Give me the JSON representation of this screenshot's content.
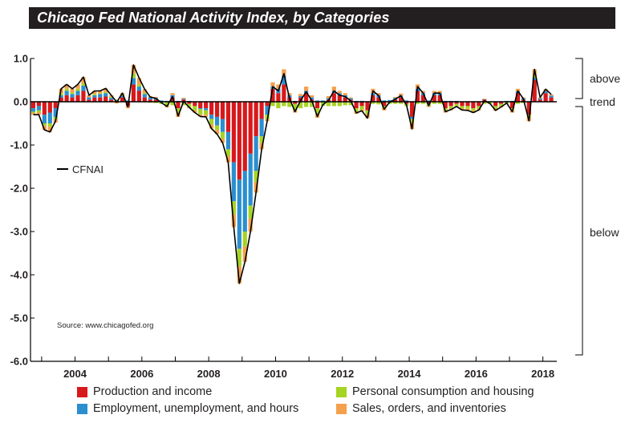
{
  "header": {
    "title": "Chicago Fed National Activity Index, by Categories"
  },
  "colors": {
    "production": "#d7191c",
    "employment": "#2b8fcf",
    "consumption": "#a6d423",
    "sales": "#f4a04c",
    "line": "#000000",
    "title_bg": "#231f20"
  },
  "chart_data": {
    "type": "bar",
    "subtype": "stacked-bar-with-line",
    "title": "Chicago Fed National Activity Index, by Categories",
    "xlabel": "",
    "ylabel": "",
    "xlim": [
      "2002-09",
      "2018-06"
    ],
    "ylim": [
      -6.0,
      1.0
    ],
    "yticks": [
      {
        "value": 1.0,
        "label": "1.0"
      },
      {
        "value": 0.0,
        "label": "0.0"
      },
      {
        "value": -1.0,
        "label": "-1.0"
      },
      {
        "value": -2.0,
        "label": "-2.0"
      },
      {
        "value": -3.0,
        "label": "-3.0"
      },
      {
        "value": -4.0,
        "label": "-4.0"
      },
      {
        "value": -5.0,
        "label": "-5.0"
      },
      {
        "value": -6.0,
        "label": "-6.0"
      }
    ],
    "xticks": [
      {
        "value": 2004,
        "label": "2004"
      },
      {
        "value": 2006,
        "label": "2006"
      },
      {
        "value": 2008,
        "label": "2008"
      },
      {
        "value": 2010,
        "label": "2010"
      },
      {
        "value": 2012,
        "label": "2012"
      },
      {
        "value": 2014,
        "label": "2014"
      },
      {
        "value": 2016,
        "label": "2016"
      },
      {
        "value": 2018,
        "label": "2018"
      }
    ],
    "line_legend": "CFNAI",
    "regions": [
      {
        "label": "above",
        "from": 1.0,
        "to": 0.1
      },
      {
        "label": "trend",
        "from": 0.1,
        "to": -0.1
      },
      {
        "label": "below",
        "from": -0.1,
        "to": -6.0
      }
    ],
    "annotation": "Source: www.chicagofed.org",
    "series": [
      {
        "name": "Production and income",
        "key": "production"
      },
      {
        "name": "Employment, unemployment, and hours",
        "key": "employment"
      },
      {
        "name": "Personal consumption and housing",
        "key": "consumption"
      },
      {
        "name": "Sales, orders, and inventories",
        "key": "sales"
      }
    ],
    "points": [
      [
        "2002-10",
        -0.15,
        -0.08,
        -0.03,
        -0.04
      ],
      [
        "2002-12",
        -0.1,
        -0.1,
        -0.04,
        -0.06
      ],
      [
        "2003-02",
        -0.3,
        -0.2,
        -0.05,
        -0.1
      ],
      [
        "2003-04",
        -0.25,
        -0.25,
        -0.08,
        -0.12
      ],
      [
        "2003-06",
        -0.15,
        -0.2,
        -0.05,
        -0.08
      ],
      [
        "2003-08",
        0.1,
        0.05,
        0.05,
        0.1
      ],
      [
        "2003-10",
        0.15,
        0.1,
        0.05,
        0.1
      ],
      [
        "2003-12",
        0.1,
        0.08,
        0.04,
        0.08
      ],
      [
        "2004-02",
        0.15,
        0.1,
        0.05,
        0.1
      ],
      [
        "2004-04",
        0.25,
        0.12,
        0.05,
        0.15
      ],
      [
        "2004-06",
        0.05,
        0.05,
        0.0,
        0.05
      ],
      [
        "2004-08",
        0.1,
        0.05,
        0.03,
        0.07
      ],
      [
        "2004-10",
        0.1,
        0.08,
        0.02,
        0.05
      ],
      [
        "2004-12",
        0.12,
        0.08,
        0.03,
        0.08
      ],
      [
        "2005-02",
        0.05,
        0.04,
        0.02,
        0.04
      ],
      [
        "2005-04",
        0.0,
        0.03,
        0.02,
        -0.04
      ],
      [
        "2005-06",
        0.1,
        0.04,
        0.02,
        0.04
      ],
      [
        "2005-08",
        -0.1,
        0.03,
        0.0,
        -0.05
      ],
      [
        "2005-10",
        0.4,
        0.15,
        0.1,
        0.2
      ],
      [
        "2005-12",
        0.25,
        0.1,
        0.05,
        0.15
      ],
      [
        "2006-02",
        0.1,
        0.08,
        0.03,
        0.08
      ],
      [
        "2006-04",
        0.05,
        0.05,
        -0.02,
        0.03
      ],
      [
        "2006-06",
        0.05,
        0.04,
        -0.03,
        0.02
      ],
      [
        "2006-08",
        0.0,
        0.03,
        -0.05,
        0.0
      ],
      [
        "2006-10",
        0.0,
        0.02,
        -0.08,
        -0.05
      ],
      [
        "2006-12",
        0.1,
        0.05,
        -0.08,
        0.05
      ],
      [
        "2007-02",
        -0.15,
        0.02,
        -0.1,
        -0.1
      ],
      [
        "2007-04",
        0.05,
        0.02,
        -0.08,
        0.02
      ],
      [
        "2007-06",
        -0.05,
        0.02,
        -0.08,
        -0.02
      ],
      [
        "2007-08",
        -0.1,
        0.0,
        -0.1,
        -0.05
      ],
      [
        "2007-10",
        -0.15,
        -0.02,
        -0.12,
        -0.05
      ],
      [
        "2007-12",
        -0.15,
        -0.05,
        -0.1,
        -0.05
      ],
      [
        "2008-02",
        -0.3,
        -0.1,
        -0.12,
        -0.1
      ],
      [
        "2008-04",
        -0.35,
        -0.2,
        -0.1,
        -0.1
      ],
      [
        "2008-06",
        -0.4,
        -0.3,
        -0.15,
        -0.1
      ],
      [
        "2008-08",
        -0.7,
        -0.4,
        -0.15,
        -0.15
      ],
      [
        "2008-10",
        -1.4,
        -0.9,
        -0.3,
        -0.3
      ],
      [
        "2008-12",
        -1.8,
        -1.6,
        -0.4,
        -0.4
      ],
      [
        "2009-02",
        -1.6,
        -1.4,
        -0.35,
        -0.35
      ],
      [
        "2009-04",
        -1.2,
        -1.2,
        -0.3,
        -0.3
      ],
      [
        "2009-06",
        -0.8,
        -0.8,
        -0.25,
        -0.25
      ],
      [
        "2009-08",
        -0.4,
        -0.4,
        -0.15,
        -0.15
      ],
      [
        "2009-10",
        -0.1,
        -0.2,
        -0.1,
        -0.05
      ],
      [
        "2009-12",
        0.3,
        0.05,
        -0.1,
        0.1
      ],
      [
        "2010-02",
        0.2,
        0.1,
        -0.15,
        0.1
      ],
      [
        "2010-04",
        0.4,
        0.2,
        -0.1,
        0.15
      ],
      [
        "2010-06",
        0.1,
        0.05,
        -0.12,
        0.05
      ],
      [
        "2010-08",
        -0.05,
        0.02,
        -0.15,
        -0.05
      ],
      [
        "2010-10",
        0.1,
        0.03,
        -0.15,
        0.05
      ],
      [
        "2010-12",
        0.2,
        0.05,
        -0.12,
        0.1
      ],
      [
        "2011-02",
        0.05,
        0.05,
        -0.12,
        0.05
      ],
      [
        "2011-04",
        -0.15,
        0.03,
        -0.12,
        -0.1
      ],
      [
        "2011-06",
        0.0,
        0.03,
        -0.1,
        0.0
      ],
      [
        "2011-08",
        0.05,
        0.03,
        -0.1,
        0.05
      ],
      [
        "2011-10",
        0.2,
        0.05,
        -0.1,
        0.1
      ],
      [
        "2011-12",
        0.15,
        0.05,
        -0.1,
        0.05
      ],
      [
        "2012-02",
        0.1,
        0.05,
        -0.08,
        0.05
      ],
      [
        "2012-04",
        0.05,
        0.03,
        -0.08,
        0.02
      ],
      [
        "2012-06",
        -0.15,
        0.02,
        -0.08,
        -0.05
      ],
      [
        "2012-08",
        -0.1,
        0.02,
        -0.08,
        -0.05
      ],
      [
        "2012-10",
        -0.2,
        0.0,
        -0.08,
        -0.1
      ],
      [
        "2012-12",
        0.15,
        0.05,
        -0.05,
        0.1
      ],
      [
        "2013-02",
        0.1,
        0.05,
        -0.06,
        0.05
      ],
      [
        "2013-04",
        -0.1,
        0.03,
        -0.05,
        -0.05
      ],
      [
        "2013-06",
        0.0,
        0.04,
        -0.05,
        0.0
      ],
      [
        "2013-08",
        0.05,
        0.04,
        -0.05,
        0.02
      ],
      [
        "2013-10",
        0.1,
        0.04,
        -0.05,
        0.05
      ],
      [
        "2013-12",
        -0.05,
        0.03,
        -0.05,
        0.0
      ],
      [
        "2014-02",
        -0.35,
        -0.05,
        -0.08,
        -0.15
      ],
      [
        "2014-04",
        0.25,
        0.05,
        -0.05,
        0.1
      ],
      [
        "2014-06",
        0.15,
        0.05,
        -0.05,
        0.05
      ],
      [
        "2014-08",
        -0.05,
        0.03,
        -0.05,
        -0.02
      ],
      [
        "2014-10",
        0.15,
        0.05,
        -0.05,
        0.05
      ],
      [
        "2014-12",
        0.15,
        0.05,
        -0.05,
        0.05
      ],
      [
        "2015-02",
        -0.15,
        0.02,
        -0.05,
        -0.05
      ],
      [
        "2015-04",
        -0.1,
        0.02,
        -0.05,
        -0.05
      ],
      [
        "2015-06",
        -0.05,
        0.02,
        -0.05,
        -0.03
      ],
      [
        "2015-08",
        -0.1,
        0.01,
        -0.05,
        -0.05
      ],
      [
        "2015-10",
        -0.1,
        0.01,
        -0.06,
        -0.05
      ],
      [
        "2015-12",
        -0.15,
        0.01,
        -0.06,
        -0.05
      ],
      [
        "2016-02",
        -0.1,
        0.01,
        -0.05,
        -0.05
      ],
      [
        "2016-04",
        0.05,
        0.01,
        -0.05,
        0.01
      ],
      [
        "2016-06",
        0.0,
        0.01,
        -0.05,
        0.0
      ],
      [
        "2016-08",
        -0.1,
        0.01,
        -0.06,
        -0.05
      ],
      [
        "2016-10",
        -0.05,
        0.01,
        -0.05,
        -0.03
      ],
      [
        "2016-12",
        0.0,
        0.02,
        -0.05,
        0.0
      ],
      [
        "2017-02",
        -0.15,
        0.02,
        -0.05,
        -0.05
      ],
      [
        "2017-04",
        0.2,
        0.04,
        -0.05,
        0.06
      ],
      [
        "2017-06",
        0.05,
        0.03,
        -0.03,
        0.02
      ],
      [
        "2017-08",
        -0.3,
        0.01,
        -0.05,
        -0.1
      ],
      [
        "2017-10",
        0.5,
        0.05,
        0.05,
        0.15
      ],
      [
        "2017-12",
        0.05,
        0.03,
        0.0,
        0.02
      ],
      [
        "2018-02",
        0.2,
        0.04,
        0.0,
        0.05
      ],
      [
        "2018-04",
        0.1,
        0.04,
        0.0,
        0.03
      ]
    ],
    "cfnai_line": [
      [
        "2002-10",
        -0.3
      ],
      [
        "2002-12",
        -0.3
      ],
      [
        "2003-02",
        -0.65
      ],
      [
        "2003-04",
        -0.7
      ],
      [
        "2003-06",
        -0.45
      ],
      [
        "2003-08",
        0.3
      ],
      [
        "2003-10",
        0.4
      ],
      [
        "2003-12",
        0.3
      ],
      [
        "2004-02",
        0.4
      ],
      [
        "2004-04",
        0.57
      ],
      [
        "2004-06",
        0.15
      ],
      [
        "2004-08",
        0.25
      ],
      [
        "2004-10",
        0.25
      ],
      [
        "2004-12",
        0.31
      ],
      [
        "2005-02",
        0.15
      ],
      [
        "2005-04",
        -0.01
      ],
      [
        "2005-06",
        0.2
      ],
      [
        "2005-08",
        -0.12
      ],
      [
        "2005-10",
        0.85
      ],
      [
        "2005-12",
        0.55
      ],
      [
        "2006-02",
        0.29
      ],
      [
        "2006-04",
        0.11
      ],
      [
        "2006-06",
        0.08
      ],
      [
        "2006-08",
        -0.02
      ],
      [
        "2006-10",
        -0.11
      ],
      [
        "2006-12",
        0.12
      ],
      [
        "2007-02",
        -0.33
      ],
      [
        "2007-04",
        0.01
      ],
      [
        "2007-06",
        -0.13
      ],
      [
        "2007-08",
        -0.25
      ],
      [
        "2007-10",
        -0.34
      ],
      [
        "2007-12",
        -0.35
      ],
      [
        "2008-02",
        -0.62
      ],
      [
        "2008-04",
        -0.75
      ],
      [
        "2008-06",
        -0.95
      ],
      [
        "2008-08",
        -1.4
      ],
      [
        "2008-10",
        -2.9
      ],
      [
        "2008-12",
        -4.2
      ],
      [
        "2009-02",
        -3.7
      ],
      [
        "2009-04",
        -3.0
      ],
      [
        "2009-06",
        -2.1
      ],
      [
        "2009-08",
        -1.1
      ],
      [
        "2009-10",
        -0.45
      ],
      [
        "2009-12",
        0.35
      ],
      [
        "2010-02",
        0.25
      ],
      [
        "2010-04",
        0.65
      ],
      [
        "2010-06",
        0.08
      ],
      [
        "2010-08",
        -0.23
      ],
      [
        "2010-10",
        0.03
      ],
      [
        "2010-12",
        0.23
      ],
      [
        "2011-02",
        0.03
      ],
      [
        "2011-04",
        -0.34
      ],
      [
        "2011-06",
        -0.07
      ],
      [
        "2011-08",
        0.03
      ],
      [
        "2011-10",
        0.25
      ],
      [
        "2011-12",
        0.15
      ],
      [
        "2012-02",
        0.12
      ],
      [
        "2012-04",
        0.02
      ],
      [
        "2012-06",
        -0.26
      ],
      [
        "2012-08",
        -0.21
      ],
      [
        "2012-10",
        -0.38
      ],
      [
        "2012-12",
        0.25
      ],
      [
        "2013-02",
        0.14
      ],
      [
        "2013-04",
        -0.17
      ],
      [
        "2013-06",
        -0.01
      ],
      [
        "2013-08",
        0.06
      ],
      [
        "2013-10",
        0.14
      ],
      [
        "2013-12",
        -0.07
      ],
      [
        "2014-02",
        -0.63
      ],
      [
        "2014-04",
        0.35
      ],
      [
        "2014-06",
        0.2
      ],
      [
        "2014-08",
        -0.09
      ],
      [
        "2014-10",
        0.2
      ],
      [
        "2014-12",
        0.2
      ],
      [
        "2015-02",
        -0.23
      ],
      [
        "2015-04",
        -0.18
      ],
      [
        "2015-06",
        -0.11
      ],
      [
        "2015-08",
        -0.19
      ],
      [
        "2015-10",
        -0.2
      ],
      [
        "2015-12",
        -0.25
      ],
      [
        "2016-02",
        -0.19
      ],
      [
        "2016-04",
        0.02
      ],
      [
        "2016-06",
        -0.04
      ],
      [
        "2016-08",
        -0.2
      ],
      [
        "2016-10",
        -0.12
      ],
      [
        "2016-12",
        -0.03
      ],
      [
        "2017-02",
        -0.23
      ],
      [
        "2017-04",
        0.25
      ],
      [
        "2017-06",
        0.07
      ],
      [
        "2017-08",
        -0.44
      ],
      [
        "2017-10",
        0.75
      ],
      [
        "2017-12",
        0.1
      ],
      [
        "2018-02",
        0.29
      ],
      [
        "2018-04",
        0.17
      ]
    ]
  },
  "legend": {
    "items": [
      {
        "label": "Production and income",
        "key": "production"
      },
      {
        "label": "Personal consumption and housing",
        "key": "consumption"
      },
      {
        "label": "Employment, unemployment, and hours",
        "key": "employment"
      },
      {
        "label": "Sales, orders, and inventories",
        "key": "sales"
      }
    ]
  }
}
